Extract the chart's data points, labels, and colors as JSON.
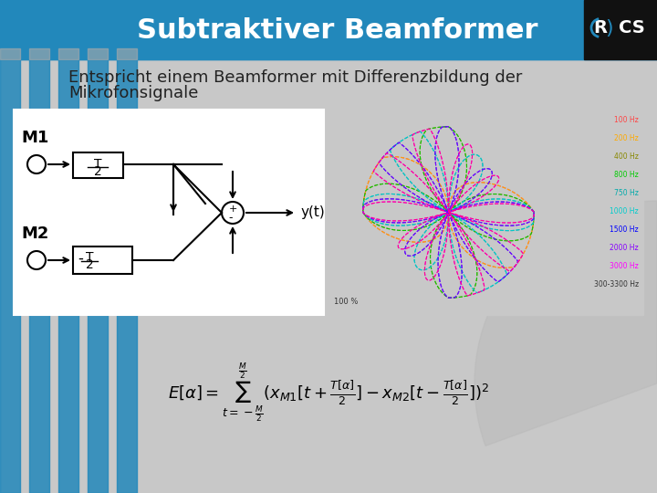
{
  "title": "Subtraktiver Beamformer",
  "subtitle_line1": "Entspricht einem Beamformer mit Differenzbildung der",
  "subtitle_line2": "Mikrofonsignale",
  "bg_color": "#c8c8c8",
  "header_bg": "#2288bb",
  "header_text_color": "#ffffff",
  "header_stripe_colors": [
    "#2288bb",
    "#ffffff"
  ],
  "logo_bg": "#111111",
  "body_bg": "#d0d0d0",
  "diagram_bg": "#ffffff",
  "polar_bg": "#d8d8d8",
  "title_fontsize": 22,
  "subtitle_fontsize": 13,
  "formula_fontsize": 14
}
